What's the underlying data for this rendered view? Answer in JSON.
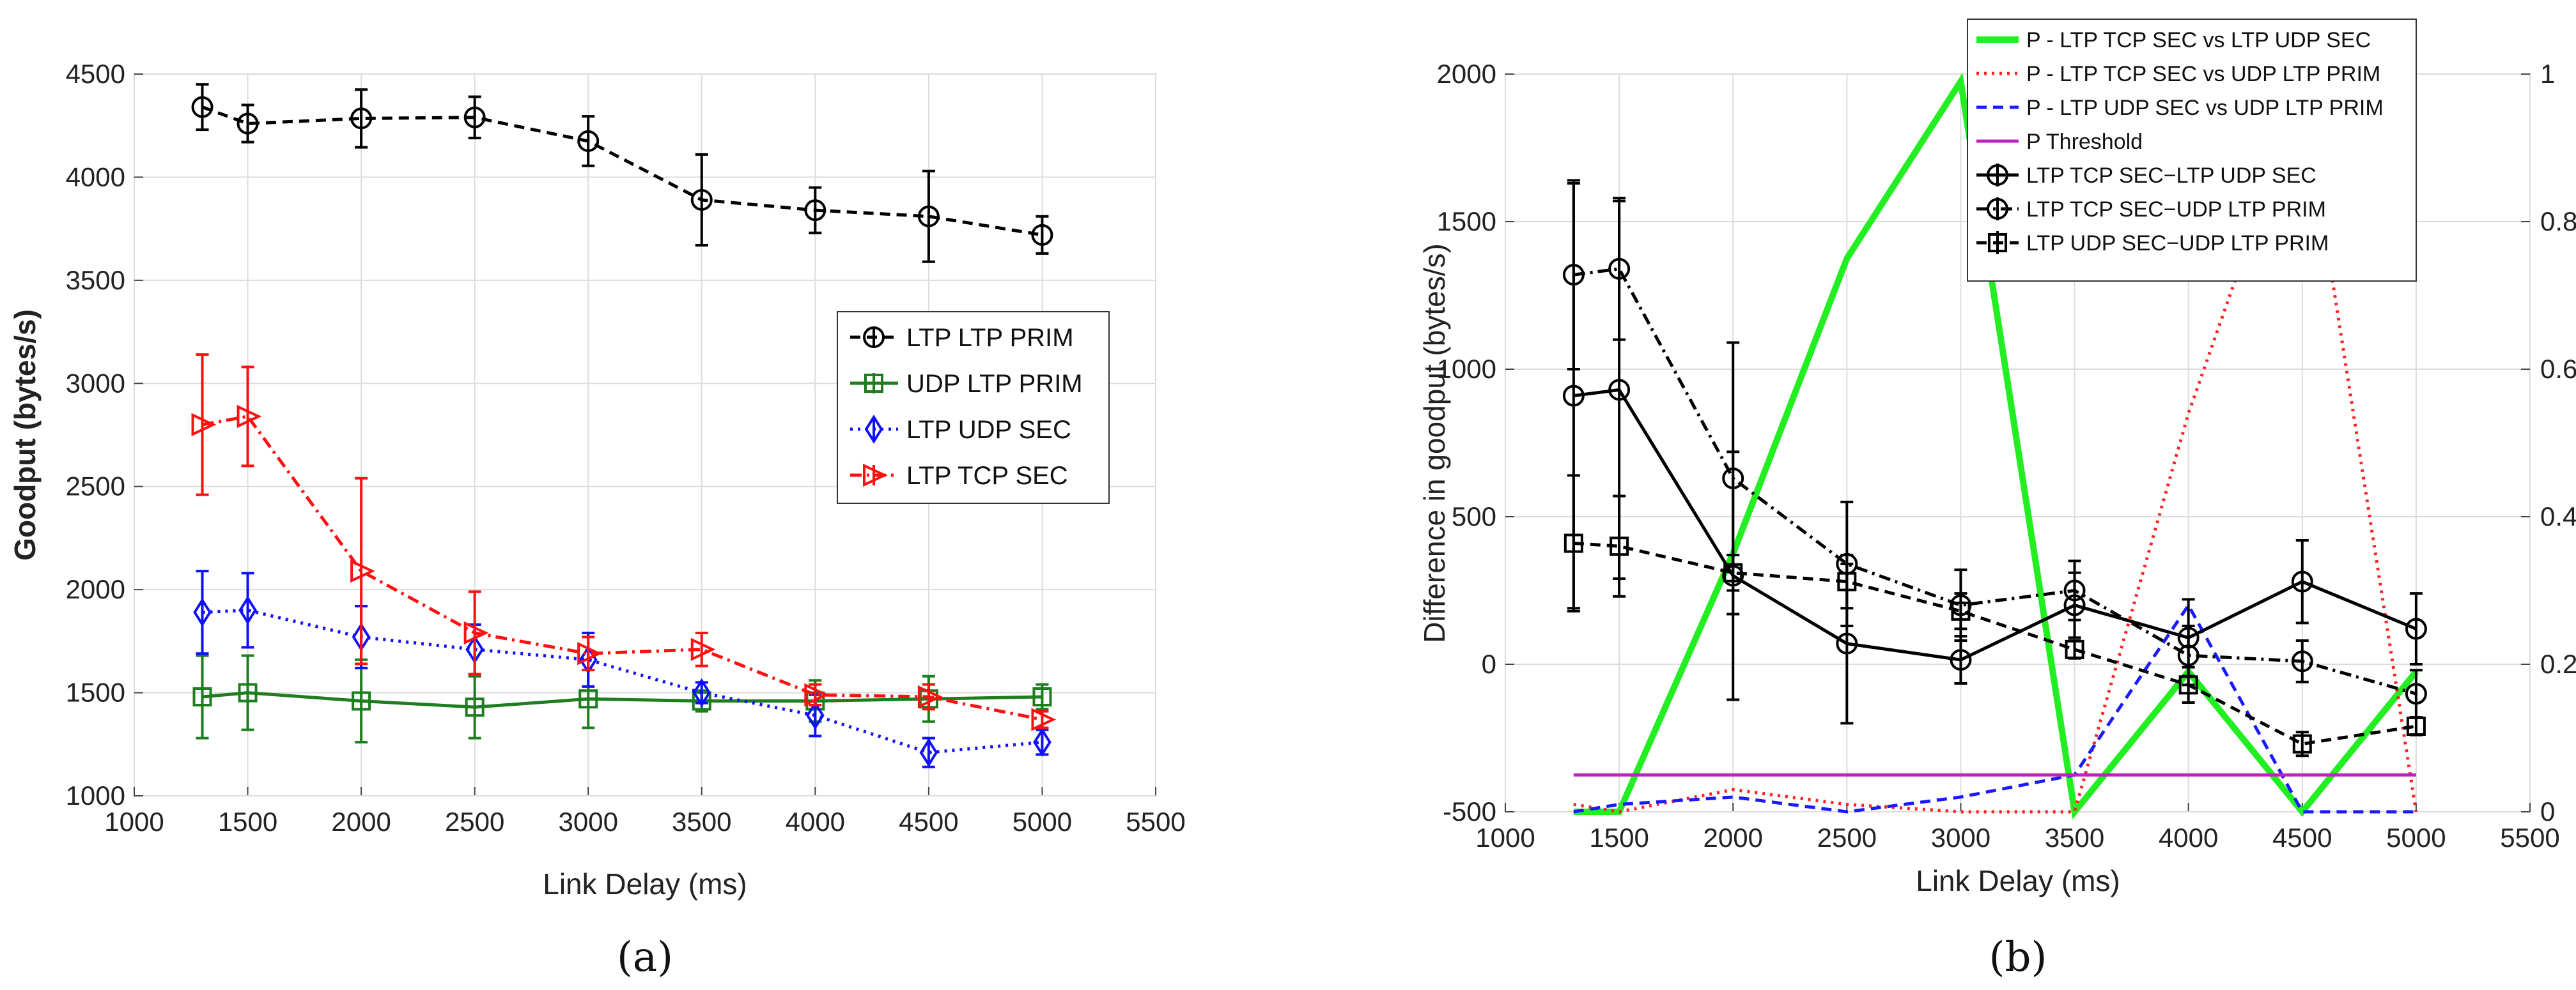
{
  "chart_data": [
    {
      "type": "line",
      "panel_label": "(a)",
      "xlabel": "Link Delay (ms)",
      "ylabel": "Goodput (bytes/s)",
      "xlim": [
        1000,
        5500
      ],
      "ylim": [
        1000,
        4500
      ],
      "xticks": [
        1000,
        1500,
        2000,
        2500,
        3000,
        3500,
        4000,
        4500,
        5000,
        5500
      ],
      "yticks": [
        1000,
        1500,
        2000,
        2500,
        3000,
        3500,
        4000,
        4500
      ],
      "grid": true,
      "legend_position": "center-right",
      "x": [
        1300,
        1500,
        2000,
        2500,
        3000,
        3500,
        4000,
        4500,
        5000
      ],
      "series": [
        {
          "name": "LTP LTP PRIM",
          "color": "#000000",
          "dash": "dashed",
          "marker": "circle",
          "values": [
            4340,
            4260,
            4285,
            4290,
            4175,
            3890,
            3840,
            3810,
            3720
          ],
          "errors": [
            110,
            90,
            140,
            100,
            120,
            220,
            110,
            220,
            90
          ]
        },
        {
          "name": "UDP LTP PRIM",
          "color": "#1e7d1e",
          "dash": "solid",
          "marker": "square",
          "values": [
            1480,
            1500,
            1460,
            1430,
            1470,
            1460,
            1460,
            1470,
            1480
          ],
          "errors": [
            200,
            180,
            200,
            150,
            140,
            50,
            100,
            110,
            60
          ]
        },
        {
          "name": "LTP UDP SEC",
          "color": "#1010ff",
          "dash": "dotted",
          "marker": "diamond",
          "values": [
            1890,
            1900,
            1770,
            1710,
            1660,
            1500,
            1390,
            1210,
            1260
          ],
          "errors": [
            200,
            180,
            150,
            120,
            130,
            50,
            100,
            70,
            60
          ]
        },
        {
          "name": "LTP TCP SEC",
          "color": "#ff1010",
          "dash": "dashdot",
          "marker": "triangle-right",
          "values": [
            2800,
            2840,
            2090,
            1790,
            1690,
            1710,
            1490,
            1480,
            1370
          ],
          "errors": [
            340,
            240,
            450,
            200,
            80,
            80,
            50,
            60,
            40
          ]
        }
      ]
    },
    {
      "type": "line",
      "panel_label": "(b)",
      "xlabel": "Link Delay (ms)",
      "ylabel": "Difference in goodput (bytes/s)",
      "xlim": [
        1000,
        5500
      ],
      "ylim": [
        -500,
        2000
      ],
      "y2lim": [
        0,
        1
      ],
      "xticks": [
        1000,
        1500,
        2000,
        2500,
        3000,
        3500,
        4000,
        4500,
        5000,
        5500
      ],
      "yticks": [
        -500,
        0,
        500,
        1000,
        1500,
        2000
      ],
      "y2ticks": [
        0,
        0.2,
        0.4,
        0.6,
        0.8,
        1
      ],
      "grid": true,
      "legend_position": "top-right",
      "x": [
        1300,
        1500,
        2000,
        2500,
        3000,
        3500,
        4000,
        4500,
        5000
      ],
      "p_series": [
        {
          "name": "P - LTP TCP SEC vs LTP UDP SEC",
          "color": "#22ee22",
          "dash": "solid",
          "values": [
            0,
            0,
            0.35,
            0.75,
            0.99,
            0,
            0.19,
            0,
            0.19
          ]
        },
        {
          "name": "P - LTP TCP SEC vs UDP LTP PRIM",
          "color": "#ff2020",
          "dash": "dotted",
          "values": [
            0.01,
            0,
            0.03,
            0.01,
            0,
            0,
            0.54,
            0.98,
            0
          ]
        },
        {
          "name": "P - LTP UDP SEC vs UDP LTP PRIM",
          "color": "#1a1aff",
          "dash": "dashed",
          "values": [
            0,
            0.01,
            0.02,
            0,
            0.02,
            0.05,
            0.28,
            0,
            0
          ]
        },
        {
          "name": "P Threshold",
          "color": "#c020c0",
          "dash": "solid",
          "values": [
            0.05,
            0.05,
            0.05,
            0.05,
            0.05,
            0.05,
            0.05,
            0.05,
            0.05
          ]
        }
      ],
      "diff_series": [
        {
          "name": "LTP TCP SEC−LTP UDP SEC",
          "color": "#000000",
          "dash": "solid",
          "marker": "circle",
          "values": [
            910,
            930,
            300,
            70,
            15,
            200,
            90,
            280,
            120
          ],
          "errors": [
            720,
            640,
            420,
            270,
            80,
            110,
            130,
            140,
            120
          ]
        },
        {
          "name": "LTP TCP SEC−UDP LTP PRIM",
          "color": "#000000",
          "dash": "dashdot",
          "marker": "circle",
          "values": [
            1320,
            1340,
            630,
            340,
            200,
            250,
            30,
            10,
            -100
          ],
          "errors": [
            320,
            240,
            460,
            210,
            120,
            100,
            100,
            70,
            80
          ]
        },
        {
          "name": "LTP UDP SEC−UDP LTP PRIM",
          "color": "#000000",
          "dash": "dashed",
          "marker": "square",
          "values": [
            410,
            400,
            310,
            280,
            180,
            50,
            -70,
            -270,
            -210
          ],
          "errors": [
            230,
            170,
            60,
            90,
            60,
            30,
            60,
            40,
            30
          ]
        }
      ]
    }
  ]
}
